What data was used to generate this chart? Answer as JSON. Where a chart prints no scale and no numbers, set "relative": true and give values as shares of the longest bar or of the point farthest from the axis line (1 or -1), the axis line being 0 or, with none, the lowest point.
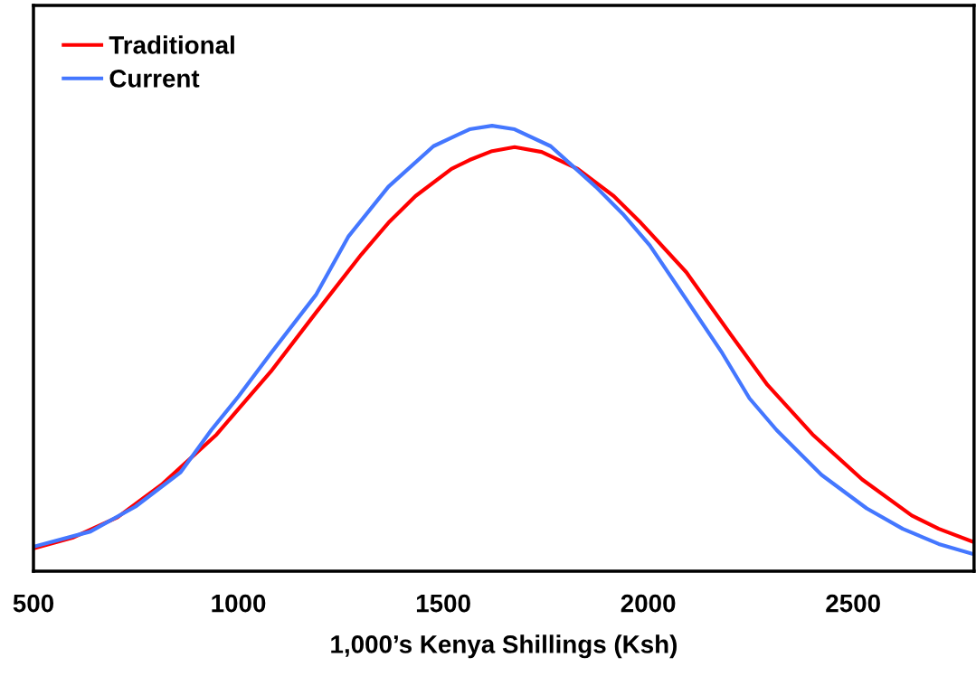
{
  "chart_data": {
    "type": "line",
    "xlabel": "1,000’s Kenya Shillings (Ksh)",
    "relative": true,
    "xlim": [
      500,
      2795
    ],
    "xticks": [
      500,
      1000,
      1500,
      2000,
      2500
    ],
    "grid": false,
    "legend": "top left",
    "marker": "none",
    "line_style": "solid",
    "series": [
      {
        "name": "Traditional",
        "color": "#ff0000",
        "x": [
          500,
          595,
          705,
          815,
          947,
          1000,
          1079,
          1189,
          1300,
          1366,
          1432,
          1520,
          1564,
          1619,
          1674,
          1740,
          1828,
          1916,
          1982,
          2093,
          2203,
          2291,
          2401,
          2522,
          2643,
          2709,
          2795
        ],
        "values": [
          0.051,
          0.075,
          0.121,
          0.196,
          0.307,
          0.364,
          0.448,
          0.58,
          0.711,
          0.782,
          0.842,
          0.903,
          0.923,
          0.943,
          0.952,
          0.941,
          0.903,
          0.842,
          0.782,
          0.671,
          0.529,
          0.418,
          0.307,
          0.206,
          0.125,
          0.095,
          0.065
        ]
      },
      {
        "name": "Current",
        "color": "#4477ff",
        "x": [
          500,
          639,
          749,
          859,
          934,
          1000,
          1079,
          1189,
          1269,
          1366,
          1476,
          1564,
          1619,
          1674,
          1762,
          1872,
          1938,
          2004,
          2093,
          2181,
          2247,
          2313,
          2423,
          2533,
          2621,
          2709,
          2795
        ],
        "values": [
          0.055,
          0.089,
          0.145,
          0.222,
          0.317,
          0.392,
          0.489,
          0.62,
          0.752,
          0.863,
          0.954,
          0.992,
          1,
          0.992,
          0.954,
          0.863,
          0.802,
          0.731,
          0.61,
          0.489,
          0.388,
          0.317,
          0.216,
          0.141,
          0.095,
          0.061,
          0.038
        ]
      }
    ]
  }
}
